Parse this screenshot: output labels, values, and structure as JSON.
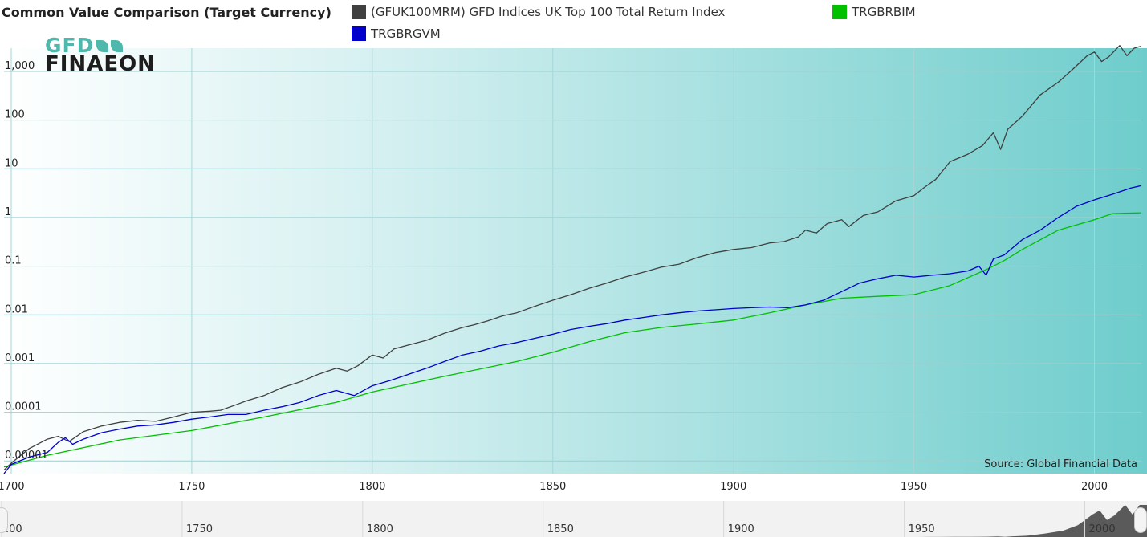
{
  "chart_data": {
    "type": "line",
    "title": "Common Value Comparison (Target Currency)",
    "yscale": "log",
    "xlim": [
      1698,
      2013
    ],
    "ylim": [
      5.5e-06,
      3000
    ],
    "xticks": [
      1700,
      1750,
      1800,
      1850,
      1900,
      1950,
      2000
    ],
    "xtick_labels": [
      "1700",
      "1750",
      "1800",
      "1850",
      "1900",
      "1950",
      "2000"
    ],
    "yticks": [
      1e-05,
      0.0001,
      0.001,
      0.01,
      0.1,
      1,
      10,
      100,
      1000
    ],
    "ytick_labels": [
      "0.00001",
      "0.0001",
      "0.001",
      "0.01",
      "0.1",
      "1",
      "10",
      "100",
      "1,000"
    ],
    "navigator_labels": [
      ".00",
      "1750",
      "1800",
      "1850",
      "1900",
      "1950",
      "2000"
    ],
    "annotation": "Source: Global Financial Data",
    "series": [
      {
        "name": "(GFUK100MRM) GFD Indices UK Top 100 Total Return Index",
        "color": "#404040",
        "points": [
          [
            1698,
            6.5e-06
          ],
          [
            1700,
            9e-06
          ],
          [
            1705,
            1.8e-05
          ],
          [
            1710,
            2.8e-05
          ],
          [
            1713,
            3.2e-05
          ],
          [
            1716,
            2.5e-05
          ],
          [
            1720,
            4e-05
          ],
          [
            1725,
            5.2e-05
          ],
          [
            1730,
            6.2e-05
          ],
          [
            1735,
            6.8e-05
          ],
          [
            1740,
            6.5e-05
          ],
          [
            1745,
            8e-05
          ],
          [
            1750,
            0.0001
          ],
          [
            1755,
            0.000105
          ],
          [
            1758,
            0.00011
          ],
          [
            1762,
            0.00014
          ],
          [
            1765,
            0.00017
          ],
          [
            1770,
            0.00022
          ],
          [
            1775,
            0.00032
          ],
          [
            1780,
            0.00042
          ],
          [
            1785,
            0.0006
          ],
          [
            1790,
            0.0008
          ],
          [
            1793,
            0.0007
          ],
          [
            1796,
            0.0009
          ],
          [
            1800,
            0.0015
          ],
          [
            1803,
            0.0013
          ],
          [
            1806,
            0.002
          ],
          [
            1810,
            0.0024
          ],
          [
            1815,
            0.003
          ],
          [
            1820,
            0.0042
          ],
          [
            1825,
            0.0055
          ],
          [
            1828,
            0.0062
          ],
          [
            1832,
            0.0075
          ],
          [
            1836,
            0.0095
          ],
          [
            1840,
            0.011
          ],
          [
            1845,
            0.015
          ],
          [
            1850,
            0.02
          ],
          [
            1855,
            0.026
          ],
          [
            1860,
            0.035
          ],
          [
            1865,
            0.045
          ],
          [
            1870,
            0.06
          ],
          [
            1875,
            0.075
          ],
          [
            1880,
            0.095
          ],
          [
            1885,
            0.11
          ],
          [
            1890,
            0.15
          ],
          [
            1895,
            0.19
          ],
          [
            1900,
            0.22
          ],
          [
            1905,
            0.24
          ],
          [
            1910,
            0.3
          ],
          [
            1914,
            0.32
          ],
          [
            1918,
            0.4
          ],
          [
            1920,
            0.55
          ],
          [
            1923,
            0.48
          ],
          [
            1926,
            0.75
          ],
          [
            1930,
            0.9
          ],
          [
            1932,
            0.65
          ],
          [
            1936,
            1.1
          ],
          [
            1940,
            1.3
          ],
          [
            1945,
            2.2
          ],
          [
            1950,
            2.8
          ],
          [
            1953,
            4.2
          ],
          [
            1956,
            6
          ],
          [
            1960,
            14
          ],
          [
            1965,
            20
          ],
          [
            1969,
            30
          ],
          [
            1972,
            55
          ],
          [
            1974,
            25
          ],
          [
            1976,
            65
          ],
          [
            1980,
            120
          ],
          [
            1985,
            330
          ],
          [
            1990,
            600
          ],
          [
            1994,
            1100
          ],
          [
            1998,
            2100
          ],
          [
            2000,
            2500
          ],
          [
            2002,
            1600
          ],
          [
            2004,
            2000
          ],
          [
            2007,
            3400
          ],
          [
            2009,
            2100
          ],
          [
            2011,
            3000
          ],
          [
            2013,
            3300
          ]
        ]
      },
      {
        "name": "TRGBRBIM",
        "color": "#00c000",
        "points": [
          [
            1698,
            7.5e-06
          ],
          [
            1710,
            1.3e-05
          ],
          [
            1730,
            2.7e-05
          ],
          [
            1750,
            4.2e-05
          ],
          [
            1770,
            8e-05
          ],
          [
            1790,
            0.00016
          ],
          [
            1800,
            0.00026
          ],
          [
            1820,
            0.00055
          ],
          [
            1840,
            0.0011
          ],
          [
            1850,
            0.0017
          ],
          [
            1860,
            0.0028
          ],
          [
            1870,
            0.0043
          ],
          [
            1880,
            0.0055
          ],
          [
            1890,
            0.0065
          ],
          [
            1900,
            0.0078
          ],
          [
            1910,
            0.011
          ],
          [
            1920,
            0.016
          ],
          [
            1930,
            0.022
          ],
          [
            1940,
            0.024
          ],
          [
            1950,
            0.026
          ],
          [
            1960,
            0.04
          ],
          [
            1970,
            0.085
          ],
          [
            1975,
            0.13
          ],
          [
            1980,
            0.22
          ],
          [
            1990,
            0.55
          ],
          [
            2000,
            0.9
          ],
          [
            2005,
            1.2
          ],
          [
            2013,
            1.25
          ]
        ]
      },
      {
        "name": "TRGBRGVM",
        "color": "#0000cc",
        "points": [
          [
            1698,
            5.5e-06
          ],
          [
            1700,
            8.5e-06
          ],
          [
            1705,
            1.2e-05
          ],
          [
            1710,
            1.5e-05
          ],
          [
            1713,
            2.4e-05
          ],
          [
            1715,
            3e-05
          ],
          [
            1717,
            2.2e-05
          ],
          [
            1720,
            2.8e-05
          ],
          [
            1725,
            3.8e-05
          ],
          [
            1730,
            4.5e-05
          ],
          [
            1735,
            5.2e-05
          ],
          [
            1740,
            5.5e-05
          ],
          [
            1745,
            6.2e-05
          ],
          [
            1750,
            7.2e-05
          ],
          [
            1755,
            8e-05
          ],
          [
            1760,
            9e-05
          ],
          [
            1765,
            9e-05
          ],
          [
            1770,
            0.00011
          ],
          [
            1775,
            0.00013
          ],
          [
            1780,
            0.00016
          ],
          [
            1785,
            0.00022
          ],
          [
            1790,
            0.00028
          ],
          [
            1795,
            0.00022
          ],
          [
            1800,
            0.00035
          ],
          [
            1805,
            0.00045
          ],
          [
            1810,
            0.0006
          ],
          [
            1815,
            0.0008
          ],
          [
            1820,
            0.0011
          ],
          [
            1825,
            0.0015
          ],
          [
            1830,
            0.0018
          ],
          [
            1835,
            0.0023
          ],
          [
            1840,
            0.0027
          ],
          [
            1845,
            0.0033
          ],
          [
            1850,
            0.004
          ],
          [
            1855,
            0.005
          ],
          [
            1860,
            0.0058
          ],
          [
            1865,
            0.0066
          ],
          [
            1870,
            0.0078
          ],
          [
            1875,
            0.0088
          ],
          [
            1880,
            0.01
          ],
          [
            1885,
            0.011
          ],
          [
            1890,
            0.012
          ],
          [
            1900,
            0.0135
          ],
          [
            1905,
            0.014
          ],
          [
            1910,
            0.0145
          ],
          [
            1915,
            0.014
          ],
          [
            1920,
            0.016
          ],
          [
            1925,
            0.02
          ],
          [
            1930,
            0.03
          ],
          [
            1935,
            0.045
          ],
          [
            1940,
            0.055
          ],
          [
            1945,
            0.065
          ],
          [
            1950,
            0.06
          ],
          [
            1955,
            0.065
          ],
          [
            1960,
            0.07
          ],
          [
            1965,
            0.08
          ],
          [
            1968,
            0.1
          ],
          [
            1970,
            0.065
          ],
          [
            1972,
            0.14
          ],
          [
            1975,
            0.17
          ],
          [
            1980,
            0.35
          ],
          [
            1985,
            0.55
          ],
          [
            1990,
            1
          ],
          [
            1995,
            1.7
          ],
          [
            2000,
            2.3
          ],
          [
            2005,
            3
          ],
          [
            2010,
            4
          ],
          [
            2013,
            4.5
          ]
        ]
      }
    ]
  }
}
